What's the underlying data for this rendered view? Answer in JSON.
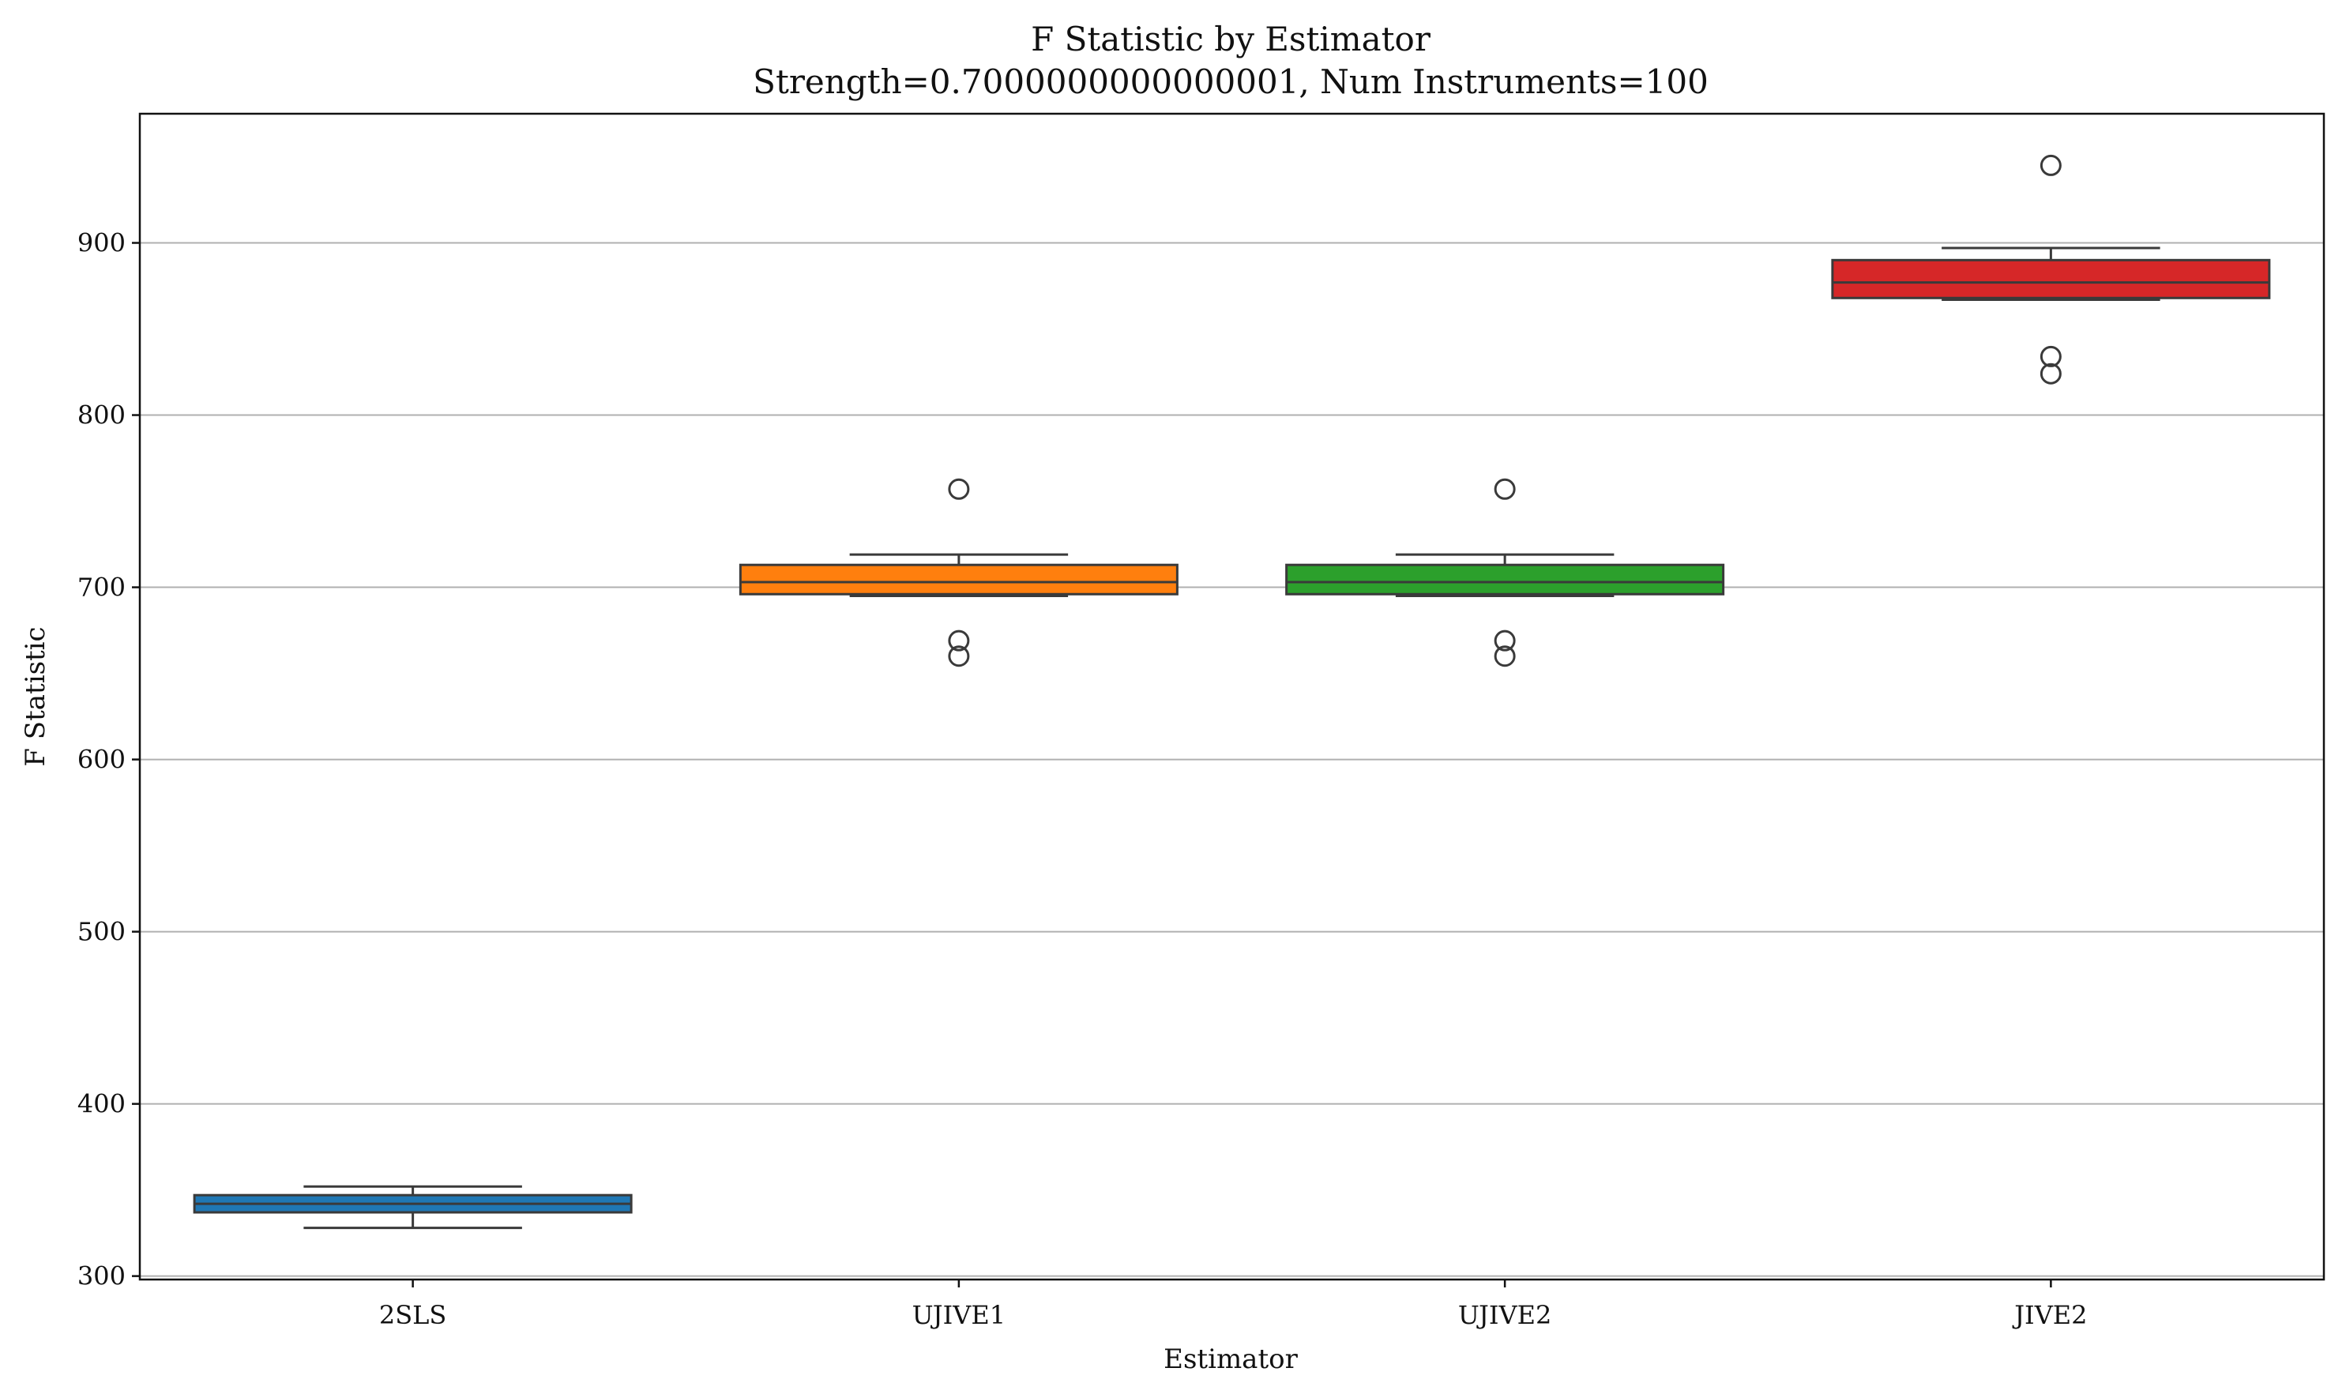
{
  "chart_data": {
    "type": "box",
    "title": "F Statistic by Estimator",
    "subtitle": "Strength=0.7000000000000001, Num Instruments=100",
    "xlabel": "Estimator",
    "ylabel": "F Statistic",
    "ylim": [
      298,
      975
    ],
    "yticks": [
      300,
      400,
      500,
      600,
      700,
      800,
      900
    ],
    "grid": "horizontal",
    "categories": [
      "2SLS",
      "UJIVE1",
      "UJIVE2",
      "JIVE2"
    ],
    "boxes": [
      {
        "category": "2SLS",
        "color": "#1f77b4",
        "whisker_low": 328,
        "q1": 337,
        "median": 342,
        "q3": 347,
        "whisker_high": 352,
        "outliers": []
      },
      {
        "category": "UJIVE1",
        "color": "#ff7f0e",
        "whisker_low": 695,
        "q1": 696,
        "median": 703,
        "q3": 713,
        "whisker_high": 719,
        "outliers": [
          757,
          669,
          660
        ]
      },
      {
        "category": "UJIVE2",
        "color": "#2ca02c",
        "whisker_low": 695,
        "q1": 696,
        "median": 703,
        "q3": 713,
        "whisker_high": 719,
        "outliers": [
          757,
          669,
          660
        ]
      },
      {
        "category": "JIVE2",
        "color": "#d62728",
        "whisker_low": 867,
        "q1": 868,
        "median": 877,
        "q3": 890,
        "whisker_high": 897,
        "outliers": [
          945,
          834,
          824
        ]
      }
    ]
  }
}
